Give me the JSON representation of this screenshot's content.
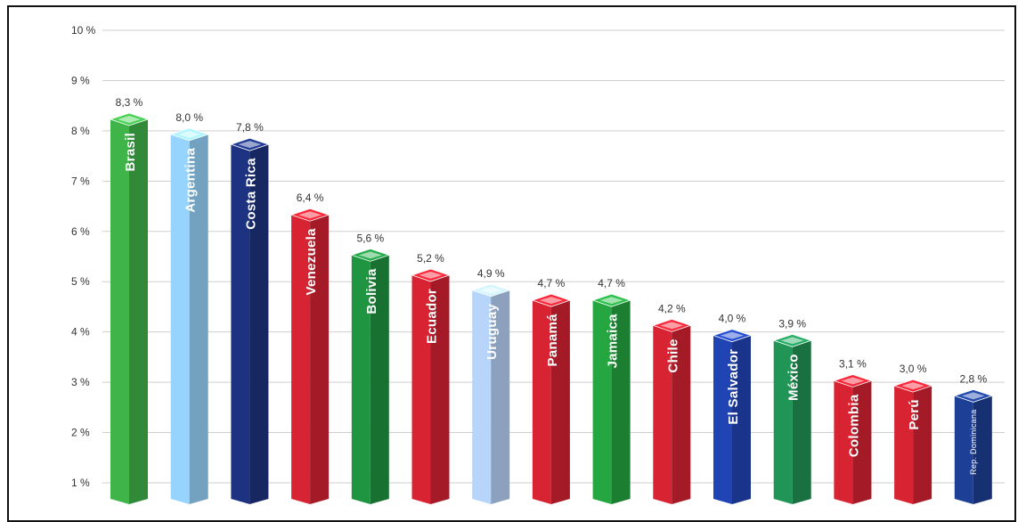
{
  "chart_data": {
    "type": "bar",
    "ylim": [
      1,
      10
    ],
    "yticks": [
      "1 %",
      "2 %",
      "3 %",
      "4 %",
      "5 %",
      "6 %",
      "7 %",
      "8 %",
      "9 %",
      "10 %"
    ],
    "grid": true,
    "categories": [
      "Brasil",
      "Argentina",
      "Costa Rica",
      "Venezuela",
      "Bolivia",
      "Ecuador",
      "Uruguay",
      "Panamá",
      "Jamaica",
      "Chile",
      "El Salvador",
      "México",
      "Colombia",
      "Perú",
      "Rep. Dominicana"
    ],
    "value_labels": [
      "8,3 %",
      "8,0 %",
      "7,8 %",
      "6,4 %",
      "5,6 %",
      "5,2 %",
      "4,9 %",
      "4,7 %",
      "4,7 %",
      "4,2 %",
      "4,0 %",
      "3,9 %",
      "3,1 %",
      "3,0 %",
      "2,8 %"
    ],
    "values": [
      8.3,
      8.0,
      7.8,
      6.4,
      5.6,
      5.2,
      4.9,
      4.7,
      4.7,
      4.2,
      4.0,
      3.9,
      3.1,
      3.0,
      2.8
    ],
    "colors": [
      "#3aa844",
      "#8cc4ea",
      "#1b2f78",
      "#c8202e",
      "#1e8a3c",
      "#c8202e",
      "#a9c4e8",
      "#c8202e",
      "#229a3c",
      "#c8202e",
      "#1f3fa8",
      "#1e8a50",
      "#c8202e",
      "#c8202e",
      "#1b3a8a"
    ],
    "flag_icons": [
      "brazil-flag",
      "argentina-flag",
      "costa-rica-flag",
      "venezuela-flag",
      "bolivia-flag",
      "ecuador-flag",
      "uruguay-flag",
      "panama-flag",
      "jamaica-flag",
      "chile-flag",
      "el-salvador-flag",
      "mexico-flag",
      "colombia-flag",
      "peru-flag",
      "dominican-republic-flag"
    ]
  }
}
